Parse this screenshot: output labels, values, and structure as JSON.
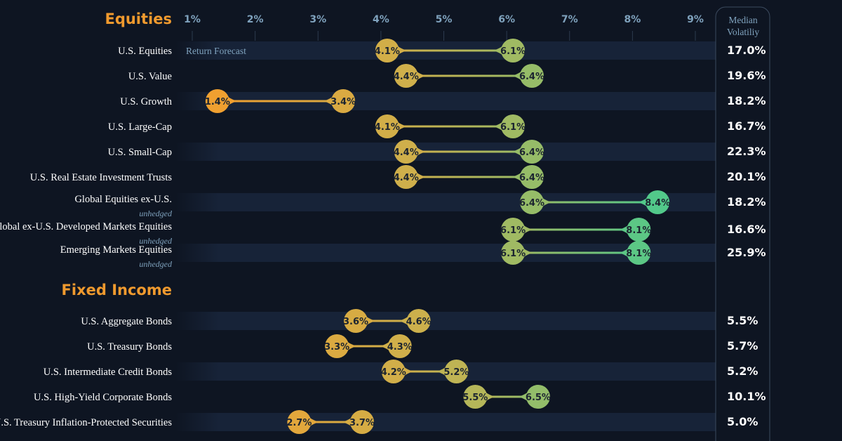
{
  "chart_data": {
    "type": "dumbbell",
    "x_ticks": [
      "1%",
      "2%",
      "3%",
      "4%",
      "5%",
      "6%",
      "7%",
      "8%",
      "9%"
    ],
    "xlim": [
      1,
      9
    ],
    "series_label": "Return Forecast",
    "volatility_header": [
      "Median",
      "Volatiliy"
    ],
    "sections": [
      {
        "title": "Equities",
        "rows": [
          {
            "label": "U.S. Equities",
            "sub": "",
            "low": 4.1,
            "high": 6.1,
            "volatility": "17.0%"
          },
          {
            "label": "U.S. Value",
            "sub": "",
            "low": 4.4,
            "high": 6.4,
            "volatility": "19.6%"
          },
          {
            "label": "U.S. Growth",
            "sub": "",
            "low": 1.4,
            "high": 3.4,
            "volatility": "18.2%"
          },
          {
            "label": "U.S. Large-Cap",
            "sub": "",
            "low": 4.1,
            "high": 6.1,
            "volatility": "16.7%"
          },
          {
            "label": "U.S. Small-Cap",
            "sub": "",
            "low": 4.4,
            "high": 6.4,
            "volatility": "22.3%"
          },
          {
            "label": "U.S. Real Estate Investment Trusts",
            "sub": "",
            "low": 4.4,
            "high": 6.4,
            "volatility": "20.1%"
          },
          {
            "label": "Global Equities ex-U.S.",
            "sub": "unhedged",
            "low": 6.4,
            "high": 8.4,
            "volatility": "18.2%"
          },
          {
            "label": "Global ex-U.S. Developed Markets Equities",
            "sub": "unhedged",
            "low": 6.1,
            "high": 8.1,
            "volatility": "16.6%"
          },
          {
            "label": "Emerging Markets Equities",
            "sub": "unhedged",
            "low": 6.1,
            "high": 8.1,
            "volatility": "25.9%"
          }
        ]
      },
      {
        "title": "Fixed Income",
        "rows": [
          {
            "label": "U.S. Aggregate Bonds",
            "sub": "",
            "low": 3.6,
            "high": 4.6,
            "volatility": "5.5%"
          },
          {
            "label": "U.S. Treasury Bonds",
            "sub": "",
            "low": 3.3,
            "high": 4.3,
            "volatility": "5.7%"
          },
          {
            "label": "U.S. Intermediate Credit Bonds",
            "sub": "",
            "low": 4.2,
            "high": 5.2,
            "volatility": "5.2%"
          },
          {
            "label": "U.S. High-Yield Corporate Bonds",
            "sub": "",
            "low": 5.5,
            "high": 6.5,
            "volatility": "10.1%"
          },
          {
            "label": "U.S. Treasury Inflation-Protected Securities",
            "sub": "",
            "low": 2.7,
            "high": 3.7,
            "volatility": "5.0%"
          }
        ]
      }
    ],
    "colors": {
      "background": "#0e1522",
      "band": "#172338",
      "low_end": "#f0a030",
      "mid": "#c9b24f",
      "high_end": "#52c98a",
      "accent": "#f09a2e",
      "muted": "#7fa2bd"
    }
  }
}
